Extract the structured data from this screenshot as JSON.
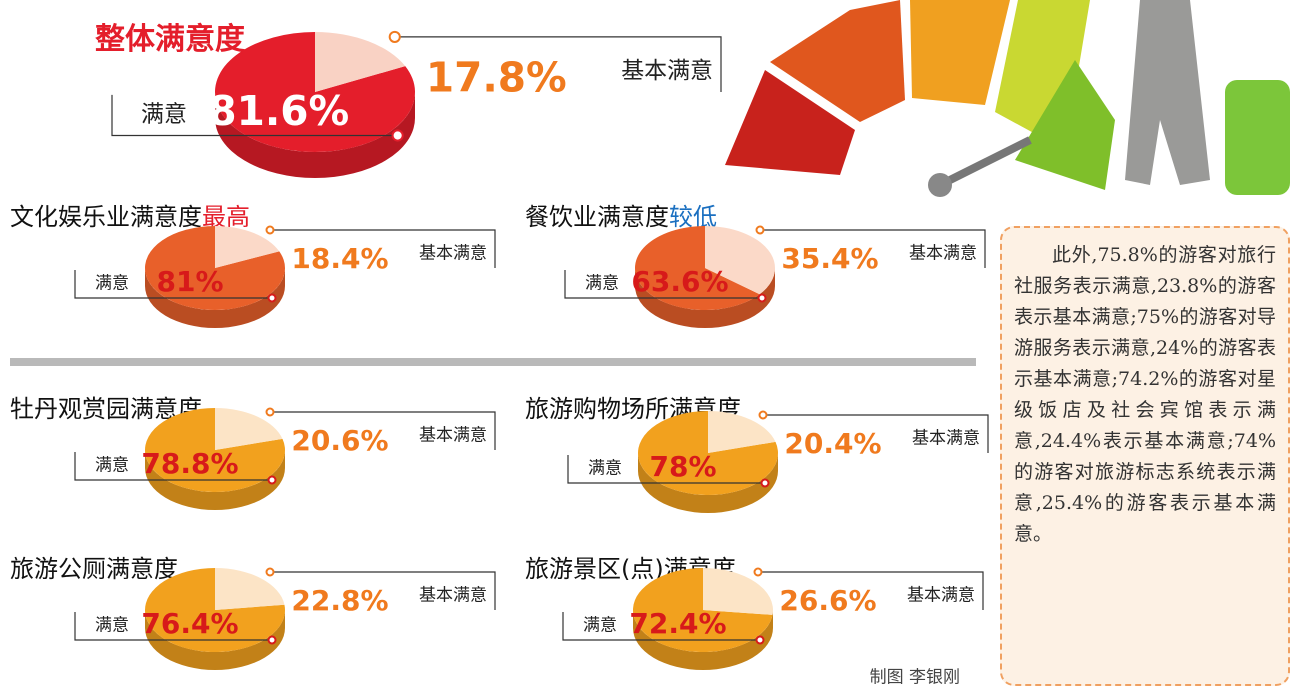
{
  "chart_data": [
    {
      "type": "pie",
      "title": "整体满意度",
      "title_color": "#e41e2b",
      "categories": [
        "满意",
        "基本满意"
      ],
      "values": [
        81.6,
        17.8
      ],
      "value_labels": [
        "81.6%",
        "17.8%"
      ],
      "colors": [
        "#e41e2b",
        "#f9d2c4"
      ],
      "value_colors": [
        "#ffffff",
        "#f07a1e"
      ]
    },
    {
      "type": "pie",
      "title": "文化娱乐业满意度",
      "title_highlight": "最高",
      "title_highlight_color": "#e41e2b",
      "categories": [
        "满意",
        "基本满意"
      ],
      "values": [
        81,
        18.4
      ],
      "value_labels": [
        "81%",
        "18.4%"
      ],
      "colors": [
        "#e8602a",
        "#fbd9c8"
      ],
      "value_colors": [
        "#d71a1a",
        "#f07a1e"
      ]
    },
    {
      "type": "pie",
      "title": "餐饮业满意度",
      "title_highlight": "较低",
      "title_highlight_color": "#1a6fc0",
      "categories": [
        "满意",
        "基本满意"
      ],
      "values": [
        63.6,
        35.4
      ],
      "value_labels": [
        "63.6%",
        "35.4%"
      ],
      "colors": [
        "#e8602a",
        "#fbd9c8"
      ],
      "value_colors": [
        "#d71a1a",
        "#f07a1e"
      ]
    },
    {
      "type": "pie",
      "title": "牡丹观赏园满意度",
      "categories": [
        "满意",
        "基本满意"
      ],
      "values": [
        78.8,
        20.6
      ],
      "value_labels": [
        "78.8%",
        "20.6%"
      ],
      "colors": [
        "#f2a11e",
        "#fce4c6"
      ],
      "value_colors": [
        "#d71a1a",
        "#f07a1e"
      ]
    },
    {
      "type": "pie",
      "title": "旅游购物场所满意度",
      "categories": [
        "满意",
        "基本满意"
      ],
      "values": [
        78,
        20.4
      ],
      "value_labels": [
        "78%",
        "20.4%"
      ],
      "colors": [
        "#f2a11e",
        "#fce4c6"
      ],
      "value_colors": [
        "#d71a1a",
        "#f07a1e"
      ]
    },
    {
      "type": "pie",
      "title": "旅游公厕满意度",
      "categories": [
        "满意",
        "基本满意"
      ],
      "values": [
        76.4,
        22.8
      ],
      "value_labels": [
        "76.4%",
        "22.8%"
      ],
      "colors": [
        "#f2a11e",
        "#fce4c6"
      ],
      "value_colors": [
        "#d71a1a",
        "#f07a1e"
      ]
    },
    {
      "type": "pie",
      "title": "旅游景区(点)满意度",
      "categories": [
        "满意",
        "基本满意"
      ],
      "values": [
        72.4,
        26.6
      ],
      "value_labels": [
        "72.4%",
        "26.6%"
      ],
      "colors": [
        "#f2a11e",
        "#fce4c6"
      ],
      "value_colors": [
        "#d71a1a",
        "#f07a1e"
      ]
    }
  ],
  "note": "此外,75.8%的游客对旅行社服务表示满意,23.8%的游客表示基本满意;75%的游客对导游服务表示满意,24%的游客表示基本满意;74.2%的游客对星级饭店及社会宾馆表示满意,24.4%表示基本满意;74%的游客对旅游标志系统表示满意,25.4%的游客表示基本满意。",
  "credit": "制图 李银刚"
}
